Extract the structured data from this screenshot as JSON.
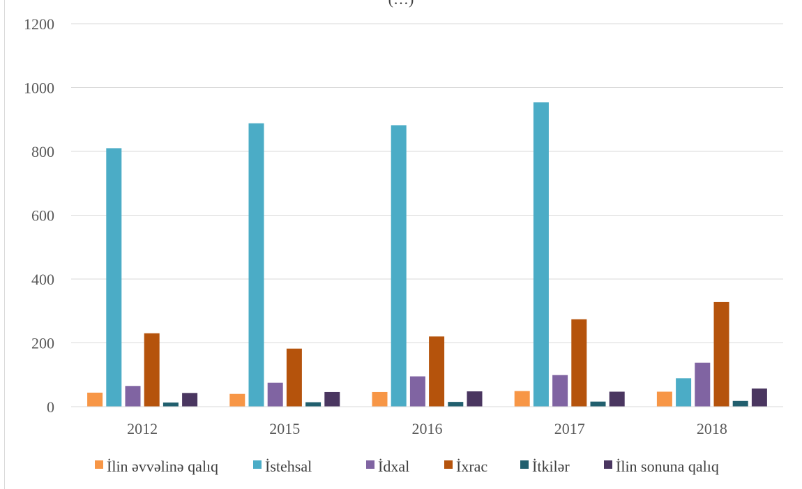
{
  "chart_data": {
    "type": "bar",
    "title": "(…)",
    "xlabel": "",
    "ylabel": "",
    "ylim": [
      0,
      1200
    ],
    "yticks": [
      0,
      200,
      400,
      600,
      800,
      1000,
      1200
    ],
    "grid": true,
    "legend_position": "bottom",
    "categories": [
      "2012",
      "2015",
      "2016",
      "2017",
      "2018"
    ],
    "series": [
      {
        "name": "İlin əvvəlinə qalıq",
        "color": "#f79646",
        "values": [
          44,
          40,
          46,
          49,
          47
        ]
      },
      {
        "name": "İstehsal",
        "color": "#4bacc6",
        "values": [
          810,
          888,
          882,
          954,
          89
        ]
      },
      {
        "name": "İdxal",
        "color": "#8064a2",
        "values": [
          65,
          75,
          95,
          99,
          138
        ]
      },
      {
        "name": "İxrac",
        "color": "#b5530c",
        "values": [
          230,
          182,
          220,
          274,
          328
        ]
      },
      {
        "name": "İtkilər",
        "color": "#215f6e",
        "values": [
          13,
          14,
          15,
          16,
          18
        ]
      },
      {
        "name": "İlin sonuna qalıq",
        "color": "#4a3660",
        "values": [
          43,
          46,
          48,
          47,
          57
        ]
      }
    ]
  }
}
